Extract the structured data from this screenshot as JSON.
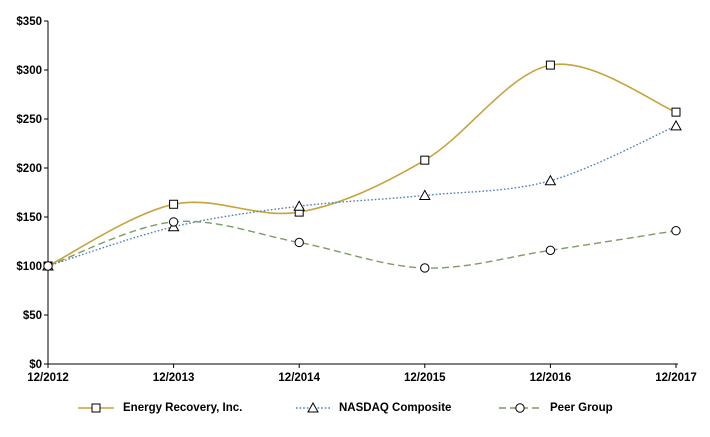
{
  "chart_data": {
    "type": "line",
    "title": "",
    "xlabel": "",
    "ylabel": "",
    "categories": [
      "12/2012",
      "12/2013",
      "12/2014",
      "12/2015",
      "12/2016",
      "12/2017"
    ],
    "y_ticks": [
      "$0",
      "$50",
      "$100",
      "$150",
      "$200",
      "$250",
      "$300",
      "$350"
    ],
    "y_tick_values": [
      0,
      50,
      100,
      150,
      200,
      250,
      300,
      350
    ],
    "ylim": [
      0,
      350
    ],
    "grid": false,
    "line_smoothing": true,
    "legend_position": "bottom",
    "axis_color": "#000000",
    "marker_fill": "#ffffff",
    "marker_stroke": "#000000",
    "series": [
      {
        "name": "Energy Recovery, Inc.",
        "marker": "square",
        "line_style": "solid",
        "color": "#C5A33D",
        "values": [
          100,
          163,
          155,
          208,
          305,
          257
        ]
      },
      {
        "name": "NASDAQ Composite",
        "marker": "triangle",
        "line_style": "dotted",
        "color": "#4F81BD",
        "values": [
          100,
          140,
          161,
          172,
          187,
          243
        ]
      },
      {
        "name": "Peer Group",
        "marker": "circle",
        "line_style": "dashed",
        "color": "#7D9C62",
        "values": [
          100,
          145,
          124,
          98,
          116,
          136
        ]
      }
    ]
  }
}
